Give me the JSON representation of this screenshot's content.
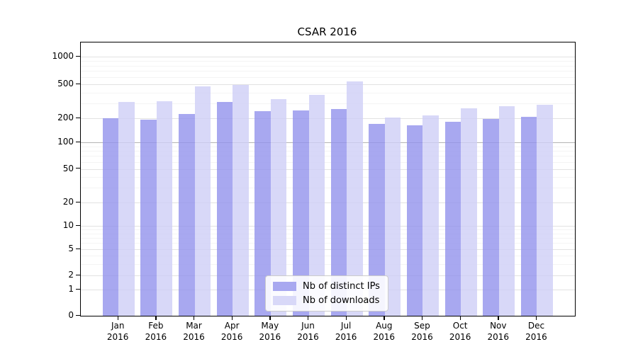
{
  "figure": {
    "title": "CSAR 2016"
  },
  "chart_data": {
    "type": "bar",
    "title": "CSAR 2016",
    "categories": [
      "Jan 2016",
      "Feb 2016",
      "Mar 2016",
      "Apr 2016",
      "May 2016",
      "Jun 2016",
      "Jul 2016",
      "Aug 2016",
      "Sep 2016",
      "Oct 2016",
      "Nov 2016",
      "Dec 2016"
    ],
    "series": [
      {
        "name": "Nb of distinct IPs",
        "color": "#a8a8f0",
        "values": [
          200,
          193,
          224,
          308,
          240,
          246,
          256,
          170,
          163,
          181,
          195,
          206
        ]
      },
      {
        "name": "Nb of downloads",
        "color": "#d8d8f8",
        "values": [
          310,
          315,
          470,
          490,
          333,
          377,
          540,
          202,
          216,
          262,
          275,
          287
        ]
      }
    ],
    "xlabel": "",
    "ylabel": "",
    "yscale": "symlog",
    "yticks": [
      0,
      1,
      2,
      5,
      10,
      20,
      50,
      100,
      200,
      500,
      1000
    ],
    "yminorticks": [
      3,
      4,
      6,
      7,
      8,
      9,
      30,
      40,
      60,
      70,
      80,
      90,
      300,
      400,
      600,
      700,
      800,
      900
    ],
    "ylim": [
      0,
      1400
    ],
    "grid": "major-and-minor-horizontal",
    "highlight_gridline": 100,
    "legend_position": "lower-center-inside"
  }
}
